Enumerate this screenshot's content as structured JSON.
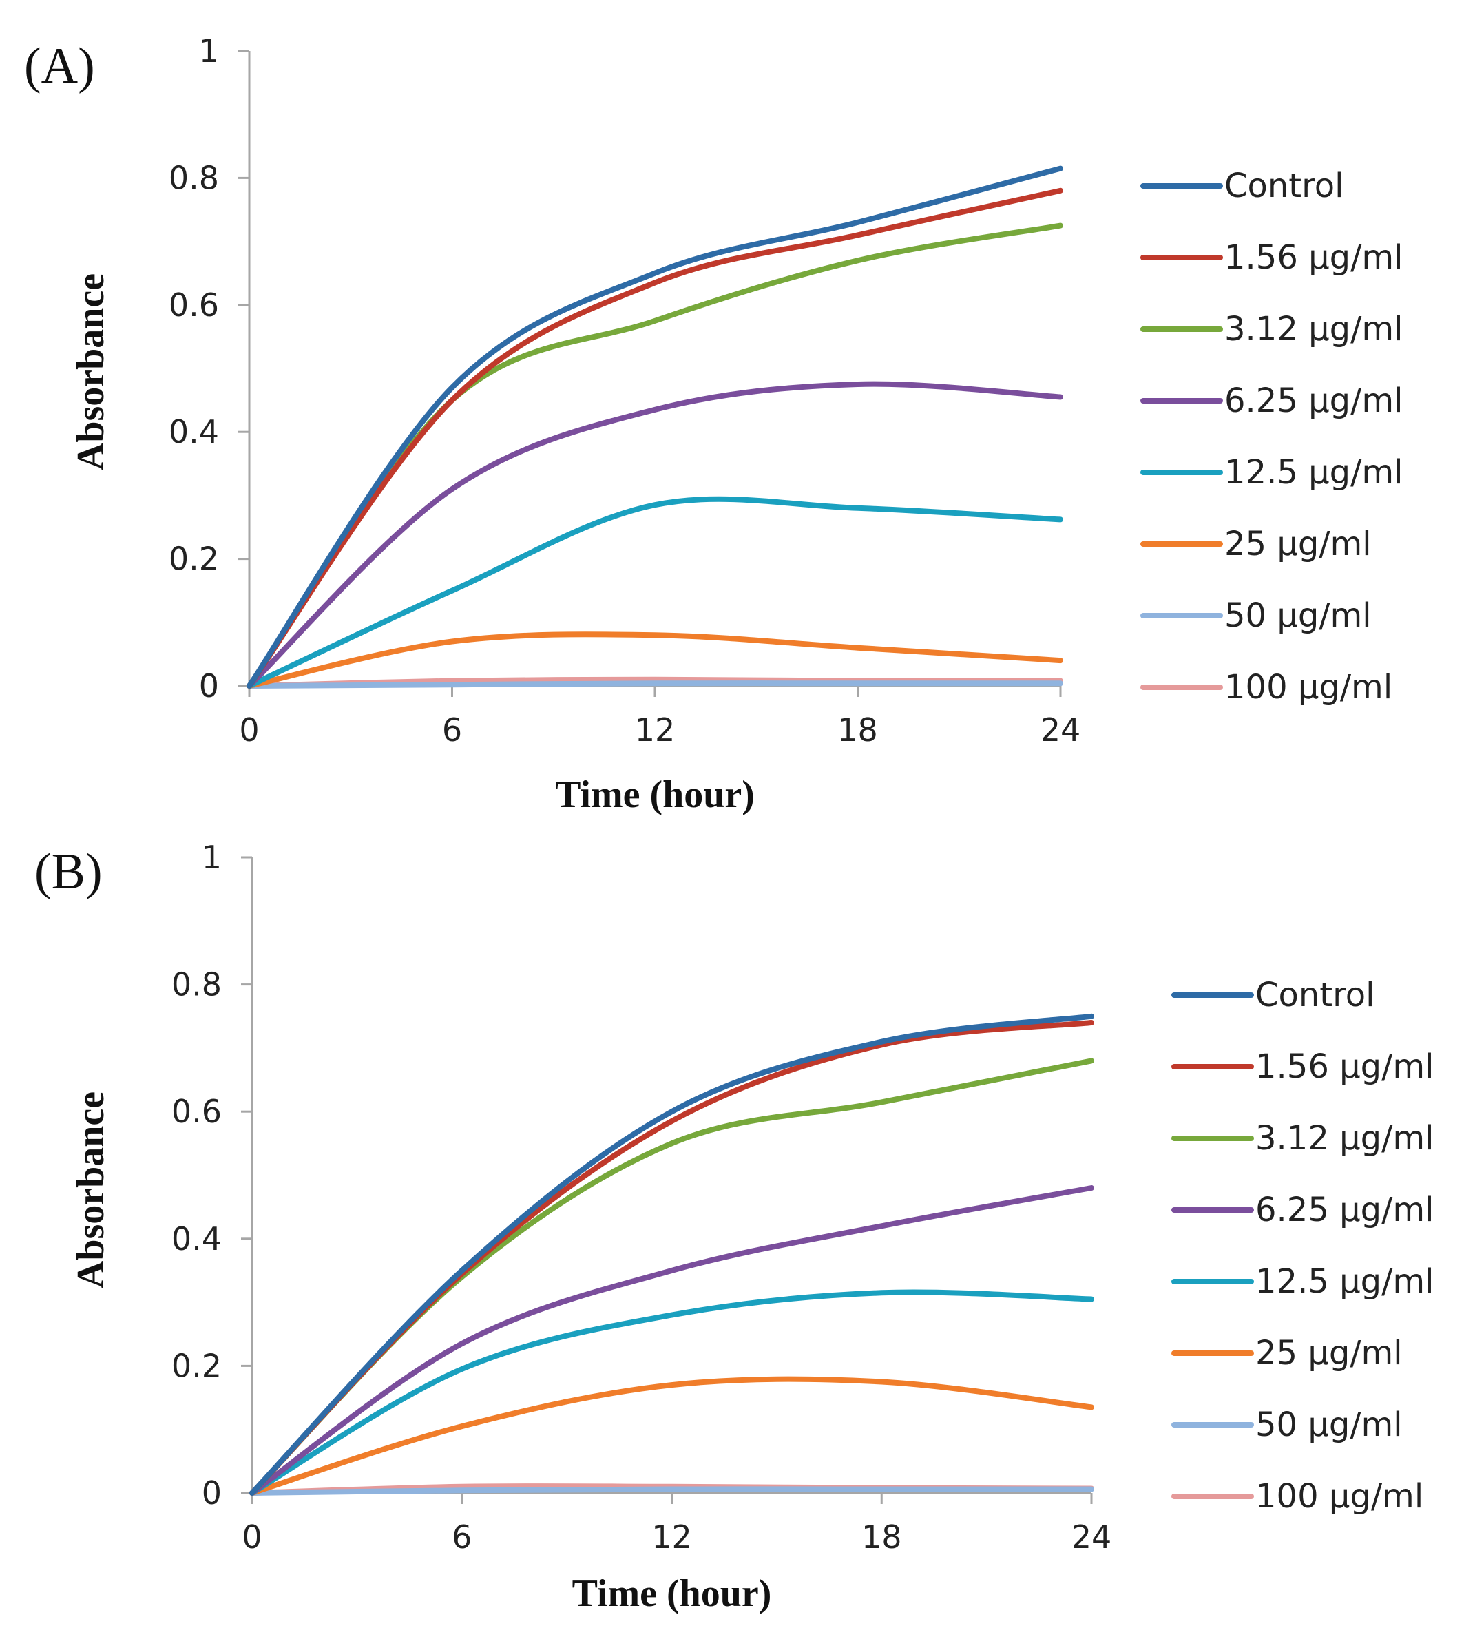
{
  "chart_data": [
    {
      "type": "line",
      "panel_label": "(A)",
      "xlabel": "Time (hour)",
      "ylabel": "Absorbance",
      "xlim": [
        0,
        24
      ],
      "ylim": [
        0,
        1
      ],
      "x_ticks": [
        "0",
        "6",
        "12",
        "18",
        "24"
      ],
      "y_ticks": [
        "0",
        "0.2",
        "0.4",
        "0.6",
        "0.8",
        "1"
      ],
      "x": [
        0,
        6,
        12,
        18,
        24
      ],
      "series": [
        {
          "name": "Control",
          "color": "#2e6ba6",
          "values": [
            0.0,
            0.47,
            0.65,
            0.73,
            0.815
          ]
        },
        {
          "name": "1.56 µg/ml",
          "color": "#c0392b",
          "values": [
            0.0,
            0.45,
            0.635,
            0.71,
            0.78
          ]
        },
        {
          "name": "3.12 µg/ml",
          "color": "#77a83b",
          "values": [
            0.0,
            0.45,
            0.575,
            0.67,
            0.725
          ]
        },
        {
          "name": "6.25 µg/ml",
          "color": "#7a4e9c",
          "values": [
            0.0,
            0.31,
            0.435,
            0.475,
            0.455
          ]
        },
        {
          "name": "12.5 µg/ml",
          "color": "#1aa0bf",
          "values": [
            0.0,
            0.15,
            0.285,
            0.28,
            0.262
          ]
        },
        {
          "name": "25 µg/ml",
          "color": "#f07d2a",
          "values": [
            0.0,
            0.07,
            0.08,
            0.06,
            0.04
          ]
        },
        {
          "name": "50 µg/ml",
          "color": "#8fb3de",
          "values": [
            0.0,
            0.002,
            0.004,
            0.004,
            0.004
          ]
        },
        {
          "name": "100 µg/ml",
          "color": "#e59a9a",
          "values": [
            0.0,
            0.008,
            0.01,
            0.008,
            0.008
          ]
        }
      ]
    },
    {
      "type": "line",
      "panel_label": "(B)",
      "xlabel": "Time (hour)",
      "ylabel": "Absorbance",
      "xlim": [
        0,
        24
      ],
      "ylim": [
        0,
        1
      ],
      "x_ticks": [
        "0",
        "6",
        "12",
        "18",
        "24"
      ],
      "y_ticks": [
        "0",
        "0.2",
        "0.4",
        "0.6",
        "0.8",
        "1"
      ],
      "x": [
        0,
        6,
        12,
        18,
        24
      ],
      "series": [
        {
          "name": "Control",
          "color": "#2e6ba6",
          "values": [
            0.0,
            0.35,
            0.6,
            0.71,
            0.75
          ]
        },
        {
          "name": "1.56 µg/ml",
          "color": "#c0392b",
          "values": [
            0.0,
            0.345,
            0.585,
            0.705,
            0.74
          ]
        },
        {
          "name": "3.12 µg/ml",
          "color": "#77a83b",
          "values": [
            0.0,
            0.34,
            0.55,
            0.615,
            0.68
          ]
        },
        {
          "name": "6.25 µg/ml",
          "color": "#7a4e9c",
          "values": [
            0.0,
            0.235,
            0.35,
            0.42,
            0.48
          ]
        },
        {
          "name": "12.5 µg/ml",
          "color": "#1aa0bf",
          "values": [
            0.0,
            0.195,
            0.28,
            0.315,
            0.305
          ]
        },
        {
          "name": "25 µg/ml",
          "color": "#f07d2a",
          "values": [
            0.0,
            0.105,
            0.17,
            0.175,
            0.135
          ]
        },
        {
          "name": "50 µg/ml",
          "color": "#8fb3de",
          "values": [
            0.0,
            0.004,
            0.006,
            0.006,
            0.006
          ]
        },
        {
          "name": "100 µg/ml",
          "color": "#e59a9a",
          "values": [
            0.0,
            0.01,
            0.01,
            0.008,
            0.007
          ]
        }
      ]
    }
  ]
}
